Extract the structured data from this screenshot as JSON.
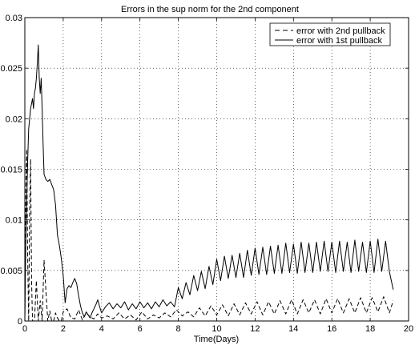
{
  "chart_data": {
    "type": "line",
    "title": "Errors in the sup norm for the 2nd component",
    "xlabel": "Time(Days)",
    "ylabel": "",
    "xlim": [
      0,
      20
    ],
    "ylim": [
      0,
      0.03
    ],
    "xticks": [
      0,
      2,
      4,
      6,
      8,
      10,
      12,
      14,
      16,
      18,
      20
    ],
    "yticks": [
      0,
      0.005,
      0.01,
      0.015,
      0.02,
      0.025,
      0.03
    ],
    "xtick_labels": [
      "0",
      "2",
      "4",
      "6",
      "8",
      "10",
      "12",
      "14",
      "16",
      "18",
      "20"
    ],
    "ytick_labels": [
      "0",
      "0.005",
      "0.01",
      "0.015",
      "0.02",
      "0.025",
      "0.03"
    ],
    "grid": true,
    "legend_position": "top-right",
    "series": [
      {
        "name": "error with 2nd pullback",
        "style": "dashed",
        "color": "#000000",
        "x": [
          0,
          0.05,
          0.1,
          0.15,
          0.2,
          0.25,
          0.3,
          0.35,
          0.4,
          0.5,
          0.6,
          0.7,
          0.8,
          0.9,
          1.0,
          1.1,
          1.2,
          1.3,
          1.4,
          1.5,
          1.6,
          1.7,
          1.8,
          1.9,
          2.0,
          2.2,
          2.4,
          2.6,
          2.8,
          3.0,
          3.2,
          3.4,
          3.6,
          3.8,
          4.0,
          4.3,
          4.6,
          4.9,
          5.2,
          5.5,
          5.8,
          6.1,
          6.4,
          6.7,
          7.0,
          7.3,
          7.6,
          7.9,
          8.2,
          8.5,
          8.8,
          9.1,
          9.4,
          9.7,
          10.0,
          10.3,
          10.6,
          10.9,
          11.2,
          11.5,
          11.8,
          12.1,
          12.4,
          12.7,
          13.0,
          13.3,
          13.6,
          13.9,
          14.2,
          14.5,
          14.8,
          15.1,
          15.4,
          15.7,
          16.0,
          16.3,
          16.6,
          16.9,
          17.2,
          17.5,
          17.8,
          18.1,
          18.4,
          18.7,
          19.0,
          19.2
        ],
        "y": [
          0.0,
          0.013,
          0.017,
          0.006,
          0.0,
          0.011,
          0.016,
          0.004,
          0.0,
          0.0,
          0.004,
          0.0,
          0.002,
          0.0,
          0.006,
          0.003,
          0.0,
          0.001,
          0.0,
          0.0,
          0.0008,
          0.0003,
          0.0,
          0.0,
          0.0009,
          0.0012,
          0.0003,
          0.0002,
          0.0011,
          0.0001,
          0.0008,
          0.0004,
          0.0002,
          0.0007,
          0.0003,
          0.0005,
          0.0002,
          0.0008,
          0.0002,
          0.0006,
          0.0001,
          0.0009,
          0.0002,
          0.0006,
          0.0003,
          0.0008,
          0.0004,
          0.0011,
          0.0005,
          0.0009,
          0.0004,
          0.0013,
          0.0005,
          0.0015,
          0.0006,
          0.0016,
          0.0005,
          0.0017,
          0.0006,
          0.0018,
          0.0007,
          0.0019,
          0.0006,
          0.0019,
          0.0007,
          0.002,
          0.0007,
          0.0021,
          0.0007,
          0.0021,
          0.0008,
          0.0021,
          0.0007,
          0.0022,
          0.0008,
          0.0022,
          0.0008,
          0.0022,
          0.0008,
          0.0023,
          0.0008,
          0.0023,
          0.0009,
          0.0024,
          0.0008,
          0.002
        ]
      },
      {
        "name": "error with 1st pullback",
        "style": "solid",
        "color": "#000000",
        "x": [
          0,
          0.05,
          0.1,
          0.15,
          0.2,
          0.25,
          0.3,
          0.35,
          0.4,
          0.45,
          0.5,
          0.55,
          0.6,
          0.65,
          0.7,
          0.75,
          0.8,
          0.85,
          0.9,
          0.95,
          1.0,
          1.1,
          1.2,
          1.3,
          1.4,
          1.5,
          1.6,
          1.7,
          1.8,
          1.9,
          2.0,
          2.1,
          2.2,
          2.3,
          2.4,
          2.5,
          2.6,
          2.7,
          2.8,
          2.9,
          3.0,
          3.1,
          3.2,
          3.3,
          3.4,
          3.5,
          3.6,
          3.7,
          3.8,
          3.9,
          4.0,
          4.2,
          4.4,
          4.6,
          4.8,
          5.0,
          5.2,
          5.4,
          5.6,
          5.8,
          6.0,
          6.2,
          6.4,
          6.6,
          6.8,
          7.0,
          7.2,
          7.4,
          7.6,
          7.8,
          8.0,
          8.2,
          8.4,
          8.6,
          8.8,
          9.0,
          9.2,
          9.4,
          9.6,
          9.8,
          10.0,
          10.2,
          10.4,
          10.6,
          10.8,
          11.0,
          11.2,
          11.4,
          11.6,
          11.8,
          12.0,
          12.2,
          12.4,
          12.6,
          12.8,
          13.0,
          13.2,
          13.4,
          13.6,
          13.8,
          14.0,
          14.2,
          14.4,
          14.6,
          14.8,
          15.0,
          15.2,
          15.4,
          15.6,
          15.8,
          16.0,
          16.2,
          16.4,
          16.6,
          16.8,
          17.0,
          17.2,
          17.4,
          17.6,
          17.8,
          18.0,
          18.2,
          18.4,
          18.6,
          18.8,
          19.0,
          19.2
        ],
        "y": [
          0.0,
          0.008,
          0.012,
          0.016,
          0.019,
          0.02,
          0.021,
          0.0215,
          0.022,
          0.021,
          0.0225,
          0.023,
          0.024,
          0.0255,
          0.0273,
          0.024,
          0.0225,
          0.024,
          0.021,
          0.0175,
          0.0145,
          0.014,
          0.0138,
          0.014,
          0.0135,
          0.013,
          0.0115,
          0.0085,
          0.0075,
          0.0062,
          0.0045,
          0.0018,
          0.0032,
          0.0035,
          0.0033,
          0.0038,
          0.0042,
          0.0037,
          0.0025,
          0.0015,
          0.0008,
          0.0004,
          0.0009,
          0.0006,
          0.0003,
          0.0008,
          0.0012,
          0.0016,
          0.0021,
          0.0014,
          0.0008,
          0.0014,
          0.0018,
          0.0012,
          0.0017,
          0.0013,
          0.0019,
          0.0011,
          0.0017,
          0.0012,
          0.0019,
          0.0013,
          0.0018,
          0.0012,
          0.0019,
          0.0014,
          0.0021,
          0.0015,
          0.0019,
          0.0014,
          0.0033,
          0.0022,
          0.0038,
          0.0026,
          0.0045,
          0.003,
          0.0049,
          0.0032,
          0.0054,
          0.0036,
          0.0061,
          0.004,
          0.0064,
          0.0042,
          0.0065,
          0.0043,
          0.0067,
          0.0043,
          0.007,
          0.0045,
          0.0072,
          0.0046,
          0.0073,
          0.0046,
          0.0074,
          0.0047,
          0.0075,
          0.0047,
          0.0077,
          0.0048,
          0.0076,
          0.0047,
          0.0078,
          0.0048,
          0.0077,
          0.0048,
          0.0078,
          0.0049,
          0.0079,
          0.0049,
          0.0078,
          0.0048,
          0.0079,
          0.0049,
          0.0078,
          0.0048,
          0.008,
          0.0049,
          0.0078,
          0.0048,
          0.0079,
          0.0048,
          0.0081,
          0.0049,
          0.0079,
          0.0049,
          0.0031
        ]
      }
    ]
  }
}
